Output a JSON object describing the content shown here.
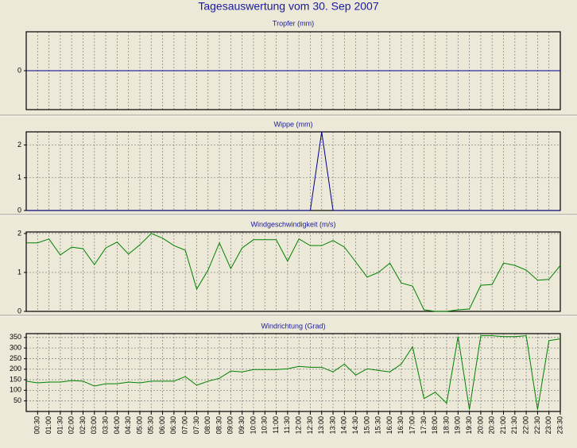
{
  "title": "Tagesauswertung vom 30. Sep 2007",
  "chart_data": [
    {
      "type": "line",
      "title": "Tropfer (mm)",
      "color": "#00008b",
      "ylim": [
        -1,
        1
      ],
      "yticks": [
        0
      ],
      "grid": true,
      "values": [
        0,
        0,
        0,
        0,
        0,
        0,
        0,
        0,
        0,
        0,
        0,
        0,
        0,
        0,
        0,
        0,
        0,
        0,
        0,
        0,
        0,
        0,
        0,
        0,
        0,
        0,
        0,
        0,
        0,
        0,
        0,
        0,
        0,
        0,
        0,
        0,
        0,
        0,
        0,
        0,
        0,
        0,
        0,
        0,
        0,
        0,
        0,
        0
      ]
    },
    {
      "type": "line",
      "title": "Wippe (mm)",
      "color": "#00008b",
      "ylim": [
        0,
        2.4
      ],
      "yticks": [
        0,
        1,
        2
      ],
      "grid": true,
      "values": [
        0,
        0,
        0,
        0,
        0,
        0,
        0,
        0,
        0,
        0,
        0,
        0,
        0,
        0,
        0,
        0,
        0,
        0,
        0,
        0,
        0,
        0,
        0,
        0,
        0,
        0,
        2.4,
        0,
        0,
        0,
        0,
        0,
        0,
        0,
        0,
        0,
        0,
        0,
        0,
        0,
        0,
        0,
        0,
        0,
        0,
        0,
        0,
        0
      ]
    },
    {
      "type": "line",
      "title": "Windgeschwindigkeit (m/s)",
      "color": "#008000",
      "ylim": [
        0,
        2.04
      ],
      "yticks": [
        0,
        1,
        2
      ],
      "grid": true,
      "values": [
        1.76,
        1.76,
        1.86,
        1.45,
        1.65,
        1.61,
        1.2,
        1.63,
        1.78,
        1.47,
        1.71,
        2.0,
        1.88,
        1.69,
        1.57,
        0.57,
        1.06,
        1.76,
        1.1,
        1.63,
        1.84,
        1.84,
        1.84,
        1.29,
        1.86,
        1.69,
        1.69,
        1.82,
        1.65,
        1.27,
        0.88,
        1.0,
        1.24,
        0.73,
        0.65,
        0.04,
        0,
        0,
        0.04,
        0.06,
        0.67,
        0.69,
        1.24,
        1.18,
        1.06,
        0.8,
        0.82,
        1.18
      ]
    },
    {
      "type": "line",
      "title": "Windrichtung (Grad)",
      "color": "#008000",
      "ylim": [
        0,
        368
      ],
      "yticks": [
        50,
        100,
        150,
        200,
        250,
        300,
        350
      ],
      "grid": true,
      "categories": [
        null,
        "00:30",
        "01:00",
        "01:30",
        "02:00",
        "02:30",
        "03:00",
        "03:30",
        "04:00",
        "04:30",
        "05:00",
        "05:30",
        "06:00",
        "06:30",
        "07:00",
        "07:30",
        "08:00",
        "08:30",
        "09:00",
        "09:30",
        "10:00",
        "10:30",
        "11:00",
        "11:30",
        "12:00",
        "12:30",
        "13:00",
        "13:30",
        "14:00",
        "14:30",
        "15:00",
        "15:30",
        "16:00",
        "16:30",
        "17:00",
        "17:30",
        "18:00",
        "18:30",
        "19:00",
        "19:30",
        "20:00",
        "20:30",
        "21:00",
        "21:30",
        "22:00",
        "22:30",
        "23:00",
        "23:30"
      ],
      "values": [
        143,
        135,
        139,
        139,
        146,
        143,
        120,
        131,
        131,
        139,
        135,
        143,
        143,
        143,
        165,
        124,
        143,
        157,
        191,
        187,
        198,
        198,
        198,
        202,
        213,
        209,
        209,
        187,
        224,
        172,
        202,
        194,
        187,
        224,
        306,
        61,
        91,
        39,
        354,
        9,
        358,
        358,
        354,
        354,
        358,
        9,
        335,
        343
      ]
    }
  ]
}
